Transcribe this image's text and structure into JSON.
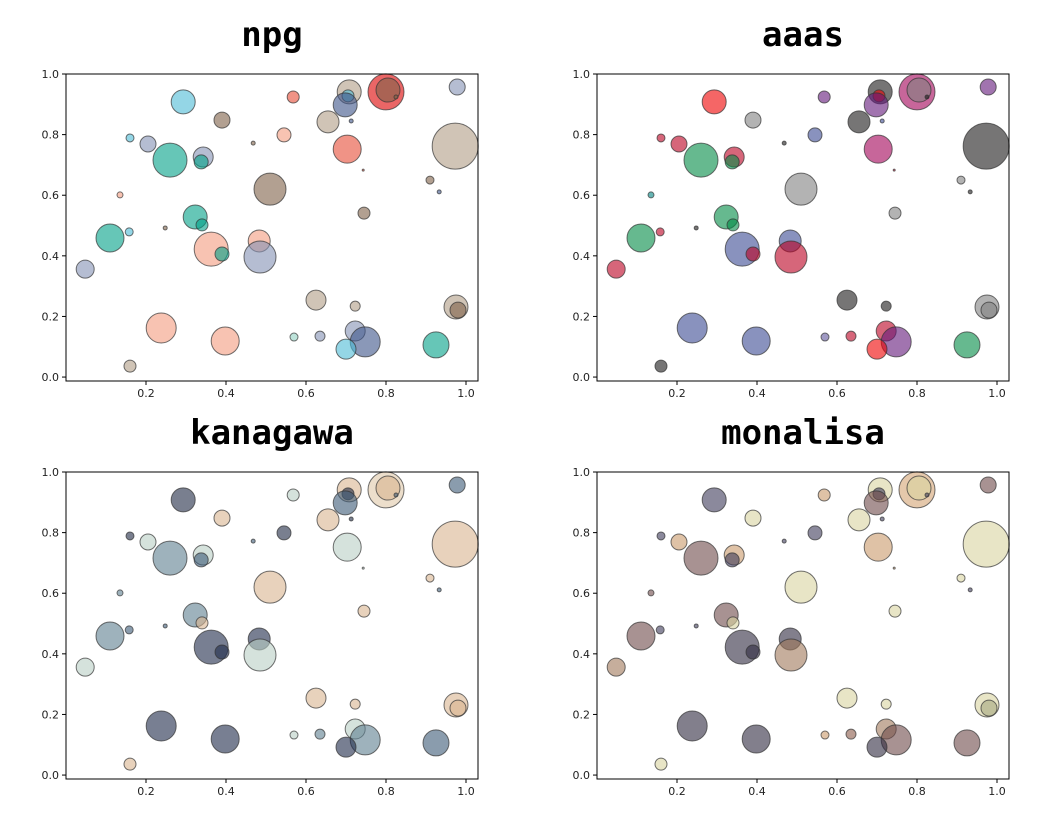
{
  "chart_data": [
    {
      "type": "scatter",
      "title": "npg",
      "x": [
        0.293,
        0.39,
        0.568,
        0.708,
        0.705,
        0.8,
        0.805,
        0.825,
        0.978,
        0.16,
        0.205,
        0.26,
        0.343,
        0.338,
        0.468,
        0.545,
        0.655,
        0.698,
        0.713,
        0.703,
        0.743,
        0.973,
        0.135,
        0.51,
        0.91,
        0.933,
        0.323,
        0.34,
        0.248,
        0.745,
        0.11,
        0.158,
        0.363,
        0.39,
        0.483,
        0.485,
        0.048,
        0.625,
        0.723,
        0.975,
        0.98,
        0.238,
        0.398,
        0.57,
        0.635,
        0.723,
        0.748,
        0.7,
        0.925,
        0.16
      ],
      "y": [
        0.908,
        0.848,
        0.924,
        0.941,
        0.928,
        0.941,
        0.947,
        0.924,
        0.957,
        0.789,
        0.769,
        0.716,
        0.726,
        0.71,
        0.772,
        0.799,
        0.842,
        0.898,
        0.845,
        0.752,
        0.683,
        0.762,
        0.601,
        0.62,
        0.65,
        0.611,
        0.528,
        0.502,
        0.492,
        0.541,
        0.459,
        0.479,
        0.422,
        0.406,
        0.449,
        0.396,
        0.356,
        0.254,
        0.234,
        0.231,
        0.221,
        0.162,
        0.119,
        0.132,
        0.135,
        0.152,
        0.116,
        0.092,
        0.106,
        0.036
      ],
      "sizes": [
        144,
        64,
        36,
        144,
        36,
        324,
        144,
        4,
        64,
        16,
        64,
        289,
        100,
        49,
        4,
        49,
        121,
        144,
        4,
        196,
        1,
        529,
        9,
        256,
        16,
        4,
        144,
        36,
        4,
        36,
        196,
        16,
        289,
        49,
        121,
        256,
        81,
        100,
        25,
        144,
        64,
        225,
        196,
        16,
        25,
        100,
        225,
        100,
        169,
        36
      ],
      "colors": [
        "#4DBBD5",
        "#7E6148",
        "#E64B35",
        "#B09C85",
        "#4DBBD5",
        "#DC0000",
        "#7E6148",
        "#7E6148",
        "#8491B4",
        "#4DBBD5",
        "#8491B4",
        "#00A087",
        "#8491B4",
        "#00A087",
        "#7E6148",
        "#F39B7F",
        "#B09C85",
        "#3C5488",
        "#3C5488",
        "#E64B35",
        "#E64B35",
        "#B09C85",
        "#F39B7F",
        "#7E6148",
        "#7E6148",
        "#3C5488",
        "#00A087",
        "#00A087",
        "#7E6148",
        "#7E6148",
        "#00A087",
        "#4DBBD5",
        "#F39B7F",
        "#00A087",
        "#F39B7F",
        "#8491B4",
        "#8491B4",
        "#B09C85",
        "#B09C85",
        "#B09C85",
        "#7E6148",
        "#F39B7F",
        "#F39B7F",
        "#91D1C2",
        "#8491B4",
        "#8491B4",
        "#3C5488",
        "#4DBBD5",
        "#00A087",
        "#B09C85"
      ],
      "xlim": [
        0,
        1.03
      ],
      "ylim": [
        -0.013,
        1.0
      ],
      "xticks": [
        0.2,
        0.4,
        0.6,
        0.8,
        {
          "value": 1,
          "label": "1.0"
        }
      ],
      "yticks": [
        {
          "value": 0,
          "label": "0.0"
        },
        0.2,
        0.4,
        0.6,
        0.8,
        {
          "value": 1,
          "label": "1.0"
        }
      ]
    },
    {
      "type": "scatter",
      "title": "aaas",
      "x": [
        0.293,
        0.39,
        0.568,
        0.708,
        0.705,
        0.8,
        0.805,
        0.825,
        0.978,
        0.16,
        0.205,
        0.26,
        0.343,
        0.338,
        0.468,
        0.545,
        0.655,
        0.698,
        0.713,
        0.703,
        0.743,
        0.973,
        0.135,
        0.51,
        0.91,
        0.933,
        0.323,
        0.34,
        0.248,
        0.745,
        0.11,
        0.158,
        0.363,
        0.39,
        0.483,
        0.485,
        0.048,
        0.625,
        0.723,
        0.975,
        0.98,
        0.238,
        0.398,
        0.57,
        0.635,
        0.723,
        0.748,
        0.7,
        0.925,
        0.16
      ],
      "y": [
        0.908,
        0.848,
        0.924,
        0.941,
        0.928,
        0.941,
        0.947,
        0.924,
        0.957,
        0.789,
        0.769,
        0.716,
        0.726,
        0.71,
        0.772,
        0.799,
        0.842,
        0.898,
        0.845,
        0.752,
        0.683,
        0.762,
        0.601,
        0.62,
        0.65,
        0.611,
        0.528,
        0.502,
        0.492,
        0.541,
        0.459,
        0.479,
        0.422,
        0.406,
        0.449,
        0.396,
        0.356,
        0.254,
        0.234,
        0.231,
        0.221,
        0.162,
        0.119,
        0.132,
        0.135,
        0.152,
        0.116,
        0.092,
        0.106,
        0.036
      ],
      "sizes": [
        144,
        64,
        36,
        144,
        36,
        324,
        144,
        4,
        64,
        16,
        64,
        289,
        100,
        49,
        4,
        49,
        121,
        144,
        4,
        196,
        1,
        529,
        9,
        256,
        16,
        4,
        144,
        36,
        4,
        36,
        196,
        16,
        289,
        49,
        121,
        256,
        81,
        100,
        25,
        144,
        64,
        225,
        196,
        16,
        25,
        100,
        225,
        100,
        169,
        36
      ],
      "colors": [
        "#EE0000",
        "#808180",
        "#631879",
        "#1B1919",
        "#EE0000",
        "#A20056",
        "#808180",
        "#1B1919",
        "#631879",
        "#BB0021",
        "#BB0021",
        "#008B45",
        "#BB0021",
        "#008B45",
        "#1B1919",
        "#3B4992",
        "#1B1919",
        "#631879",
        "#3B4992",
        "#A20056",
        "#BB0021",
        "#1B1919",
        "#008280",
        "#808180",
        "#808180",
        "#1B1919",
        "#008B45",
        "#008B45",
        "#1B1919",
        "#808180",
        "#008B45",
        "#BB0021",
        "#3B4992",
        "#BB0021",
        "#3B4992",
        "#BB0021",
        "#BB0021",
        "#1B1919",
        "#1B1919",
        "#808180",
        "#808180",
        "#3B4992",
        "#3B4992",
        "#5F559B",
        "#BB0021",
        "#BB0021",
        "#631879",
        "#EE0000",
        "#008B45",
        "#1B1919"
      ],
      "xlim": [
        0,
        1.03
      ],
      "ylim": [
        -0.013,
        1.0
      ],
      "xticks": [
        0.2,
        0.4,
        0.6,
        0.8,
        {
          "value": 1,
          "label": "1.0"
        }
      ],
      "yticks": [
        {
          "value": 0,
          "label": "0.0"
        },
        0.2,
        0.4,
        0.6,
        0.8,
        {
          "value": 1,
          "label": "1.0"
        }
      ]
    },
    {
      "type": "scatter",
      "title": "kanagawa",
      "x": [
        0.293,
        0.39,
        0.568,
        0.708,
        0.705,
        0.8,
        0.805,
        0.825,
        0.978,
        0.16,
        0.205,
        0.26,
        0.343,
        0.338,
        0.468,
        0.545,
        0.655,
        0.698,
        0.713,
        0.703,
        0.743,
        0.973,
        0.135,
        0.51,
        0.91,
        0.933,
        0.323,
        0.34,
        0.248,
        0.745,
        0.11,
        0.158,
        0.363,
        0.39,
        0.483,
        0.485,
        0.048,
        0.625,
        0.723,
        0.975,
        0.98,
        0.238,
        0.398,
        0.57,
        0.635,
        0.723,
        0.748,
        0.7,
        0.925,
        0.16
      ],
      "y": [
        0.908,
        0.848,
        0.924,
        0.941,
        0.928,
        0.941,
        0.947,
        0.924,
        0.957,
        0.789,
        0.769,
        0.716,
        0.726,
        0.71,
        0.772,
        0.799,
        0.842,
        0.898,
        0.845,
        0.752,
        0.683,
        0.762,
        0.601,
        0.62,
        0.65,
        0.611,
        0.528,
        0.502,
        0.492,
        0.541,
        0.459,
        0.479,
        0.422,
        0.406,
        0.449,
        0.396,
        0.356,
        0.254,
        0.234,
        0.231,
        0.221,
        0.162,
        0.119,
        0.132,
        0.135,
        0.152,
        0.116,
        0.092,
        0.106,
        0.036
      ],
      "sizes": [
        144,
        64,
        36,
        144,
        36,
        324,
        144,
        4,
        64,
        16,
        64,
        289,
        100,
        49,
        4,
        49,
        121,
        144,
        4,
        196,
        1,
        529,
        9,
        256,
        16,
        4,
        144,
        36,
        4,
        36,
        196,
        16,
        289,
        49,
        121,
        256,
        81,
        100,
        25,
        144,
        64,
        225,
        196,
        16,
        25,
        100,
        225,
        100,
        169,
        36
      ],
      "colors": [
        "#1F2A44",
        "#D9B48F",
        "#B9CFC4",
        "#D9B48F",
        "#1F2A44",
        "#E0C8A8",
        "#D9B48F",
        "#3C5A76",
        "#3C5A76",
        "#1F2A44",
        "#B9CFC4",
        "#5E7E90",
        "#B9CFC4",
        "#3C5A76",
        "#3C5A76",
        "#1F2A44",
        "#D9B48F",
        "#3C5A76",
        "#1F2A44",
        "#B9CFC4",
        "#B9CFC4",
        "#D9B48F",
        "#5E7E90",
        "#D9B48F",
        "#D9B48F",
        "#3C5A76",
        "#5E7E90",
        "#D9B48F",
        "#3C5A76",
        "#D9B48F",
        "#5E7E90",
        "#3C5A76",
        "#1E2A4A",
        "#1E2A4A",
        "#1E2A4A",
        "#B9CFC4",
        "#B9CFC4",
        "#D9B48F",
        "#D9B48F",
        "#D9B48F",
        "#D9B48F",
        "#1E2A4A",
        "#1E2A4A",
        "#B9CFC4",
        "#5E7E90",
        "#B9CFC4",
        "#5E7E90",
        "#1E2A4A",
        "#3C5A76",
        "#D9B48F"
      ],
      "xlim": [
        0,
        1.03
      ],
      "ylim": [
        -0.013,
        1.0
      ],
      "xticks": [
        0.2,
        0.4,
        0.6,
        0.8,
        {
          "value": 1,
          "label": "1.0"
        }
      ],
      "yticks": [
        {
          "value": 0,
          "label": "0.0"
        },
        0.2,
        0.4,
        0.6,
        0.8,
        {
          "value": 1,
          "label": "1.0"
        }
      ]
    },
    {
      "type": "scatter",
      "title": "monalisa",
      "x": [
        0.293,
        0.39,
        0.568,
        0.708,
        0.705,
        0.8,
        0.805,
        0.825,
        0.978,
        0.16,
        0.205,
        0.26,
        0.343,
        0.338,
        0.468,
        0.545,
        0.655,
        0.698,
        0.713,
        0.703,
        0.743,
        0.973,
        0.135,
        0.51,
        0.91,
        0.933,
        0.323,
        0.34,
        0.248,
        0.745,
        0.11,
        0.158,
        0.363,
        0.39,
        0.483,
        0.485,
        0.048,
        0.625,
        0.723,
        0.975,
        0.98,
        0.238,
        0.398,
        0.57,
        0.635,
        0.723,
        0.748,
        0.7,
        0.925,
        0.16
      ],
      "y": [
        0.908,
        0.848,
        0.924,
        0.941,
        0.928,
        0.941,
        0.947,
        0.924,
        0.957,
        0.789,
        0.769,
        0.716,
        0.726,
        0.71,
        0.772,
        0.799,
        0.842,
        0.898,
        0.845,
        0.752,
        0.683,
        0.762,
        0.601,
        0.62,
        0.65,
        0.611,
        0.528,
        0.502,
        0.492,
        0.541,
        0.459,
        0.479,
        0.422,
        0.406,
        0.449,
        0.396,
        0.356,
        0.254,
        0.234,
        0.231,
        0.221,
        0.162,
        0.119,
        0.132,
        0.135,
        0.152,
        0.116,
        0.092,
        0.106,
        0.036
      ],
      "sizes": [
        144,
        64,
        36,
        144,
        36,
        324,
        144,
        4,
        64,
        16,
        64,
        289,
        100,
        49,
        4,
        49,
        121,
        144,
        4,
        196,
        1,
        529,
        9,
        256,
        16,
        4,
        144,
        36,
        4,
        36,
        196,
        16,
        289,
        49,
        121,
        256,
        81,
        100,
        25,
        144,
        64,
        225,
        196,
        16,
        25,
        100,
        225,
        100,
        169,
        36
      ],
      "colors": [
        "#3E3A5A",
        "#D8D3A0",
        "#C99A6A",
        "#D8D3A0",
        "#3E3A5A",
        "#D4A373",
        "#D8D3A0",
        "#3E3A5A",
        "#6E4A4A",
        "#3E3A5A",
        "#C99A6A",
        "#6E4A4A",
        "#C99A6A",
        "#3E3A5A",
        "#3E3A5A",
        "#3E3A5A",
        "#D8D3A0",
        "#6E4A4A",
        "#3E3A5A",
        "#C99A6A",
        "#C99A6A",
        "#D8D3A0",
        "#6E4A4A",
        "#D8D3A0",
        "#D8D3A0",
        "#3E3A5A",
        "#6E4A4A",
        "#D8D3A0",
        "#3E3A5A",
        "#D8D3A0",
        "#6E4A4A",
        "#3E3A5A",
        "#2F2A3F",
        "#2F2A3F",
        "#2F2A3F",
        "#A0785A",
        "#A0785A",
        "#D8D3A0",
        "#D8D3A0",
        "#D8D3A0",
        "#A5A780",
        "#2F2A3F",
        "#2F2A3F",
        "#C99A6A",
        "#8A5A4A",
        "#A0785A",
        "#6E4A4A",
        "#2F2A3F",
        "#6E4A4A",
        "#D8D3A0"
      ],
      "xlim": [
        0,
        1.03
      ],
      "ylim": [
        -0.013,
        1.0
      ],
      "xticks": [
        0.2,
        0.4,
        0.6,
        0.8,
        {
          "value": 1,
          "label": "1.0"
        }
      ],
      "yticks": [
        {
          "value": 0,
          "label": "0.0"
        },
        0.2,
        0.4,
        0.6,
        0.8,
        {
          "value": 1,
          "label": "1.0"
        }
      ]
    }
  ]
}
